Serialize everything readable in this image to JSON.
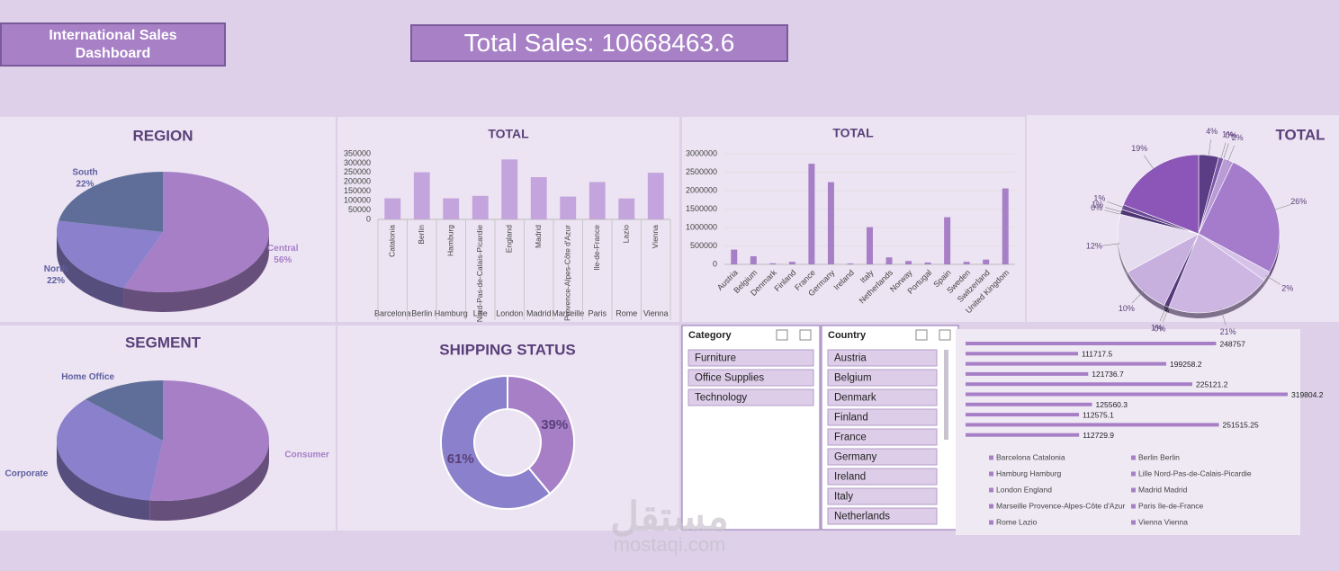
{
  "header": {
    "title": "International Sales Dashboard",
    "total_label": "Total Sales:",
    "total_value": 10668463.6
  },
  "slicers": [
    {
      "title": "Category",
      "items": [
        "Furniture",
        "Office Supplies",
        "Technology"
      ]
    },
    {
      "title": "Country",
      "items": [
        "Austria",
        "Belgium",
        "Denmark",
        "Finland",
        "France",
        "Germany",
        "Ireland",
        "Italy",
        "Netherlands"
      ]
    }
  ],
  "watermark": {
    "arabic": "مستقل",
    "site": "mostaqi.com"
  },
  "chart_data": [
    {
      "type": "pie3d",
      "title": "REGION",
      "categories": [
        "Central",
        "North",
        "South"
      ],
      "values": [
        56,
        22,
        22
      ],
      "value_labels": [
        "56%",
        "22%",
        "22%"
      ],
      "colors": [
        "#a67fc7",
        "#8a80cb",
        "#5e6e99"
      ]
    },
    {
      "type": "bar",
      "title": "TOTAL",
      "categories": [
        "Catalonia",
        "Berlin",
        "Hamburg",
        "Nord-Pas-de-Calais-Picardie",
        "England",
        "Madrid",
        "Provence-Alpes-Côte d'Azur",
        "Ile-de-France",
        "Lazio",
        "Vienna"
      ],
      "groups": [
        "Barcelona",
        "Berlin",
        "Hamburg",
        "Lille",
        "London",
        "Madrid",
        "Marseille",
        "Paris",
        "Rome",
        "Vienna"
      ],
      "values": [
        112729.9,
        251515.25,
        112575.1,
        125560.3,
        319804.2,
        225121.2,
        121736.7,
        199258.2,
        111717.5,
        248757
      ],
      "color": "#c3a4dc",
      "ylim": [
        0,
        350000
      ],
      "yticks": [
        0,
        50000,
        100000,
        150000,
        200000,
        250000,
        300000,
        350000
      ],
      "grid": false
    },
    {
      "type": "bar",
      "title": "TOTAL",
      "categories": [
        "Austria",
        "Belgium",
        "Denmark",
        "Finland",
        "France",
        "Germany",
        "Ireland",
        "Italy",
        "Netherlands",
        "Norway",
        "Portugal",
        "Spain",
        "Sweden",
        "Switzerland",
        "United Kingdom"
      ],
      "values": [
        400000,
        220000,
        30000,
        70000,
        2730000,
        2230000,
        25000,
        1010000,
        190000,
        90000,
        50000,
        1280000,
        70000,
        130000,
        2060000
      ],
      "color": "#a77fc6",
      "ylim": [
        0,
        3000000
      ],
      "yticks": [
        0,
        500000,
        1000000,
        1500000,
        2000000,
        2500000,
        3000000
      ],
      "grid": true,
      "rotate_labels": true
    },
    {
      "type": "pie",
      "title": "TOTAL",
      "values": [
        4,
        1,
        0,
        2,
        26,
        2,
        21,
        0,
        1,
        10,
        12,
        0,
        1,
        1,
        19
      ],
      "value_labels": [
        "4%",
        "1%",
        "0%",
        "2%",
        "26%",
        "2%",
        "21%",
        "0%",
        "1%",
        "10%",
        "12%",
        "0%",
        "1%",
        "1%",
        "19%"
      ],
      "colors": [
        "#5b3d86",
        "#7a57a8",
        "#9c78c4",
        "#b99bd6",
        "#a47ccb",
        "#d6c2e8",
        "#cdb6e2",
        "#6f4f9a",
        "#553a7c",
        "#c7b0de",
        "#e6dcf0",
        "#7d5aa9",
        "#4e3573",
        "#6b4a96",
        "#8c55b8"
      ]
    },
    {
      "type": "pie3d",
      "title": "SEGMENT",
      "categories": [
        "Consumer",
        "Corporate",
        "Home Office"
      ],
      "values": [
        52,
        35,
        13
      ],
      "colors": [
        "#a67fc7",
        "#8a80cb",
        "#5e6e99"
      ]
    },
    {
      "type": "donut",
      "title": "SHIPPING STATUS",
      "values": [
        39,
        61
      ],
      "value_labels": [
        "39%",
        "61%"
      ],
      "colors": [
        "#a67fc7",
        "#8a80cb"
      ]
    },
    {
      "type": "barh",
      "categories": [
        "Barcelona Catalonia",
        "Berlin Berlin",
        "Hamburg Hamburg",
        "Lille Nord-Pas-de-Calais-Picardie",
        "London England",
        "Madrid Madrid",
        "Marseille Provence-Alpes-Côte d'Azur",
        "Paris Ile-de-France",
        "Rome Lazio",
        "Vienna Vienna"
      ],
      "values": [
        112729.9,
        251515.25,
        112575.1,
        125560.3,
        319804.2,
        225121.2,
        121736.7,
        199258.2,
        111717.5,
        248757
      ],
      "color": "#a77fc6"
    }
  ]
}
